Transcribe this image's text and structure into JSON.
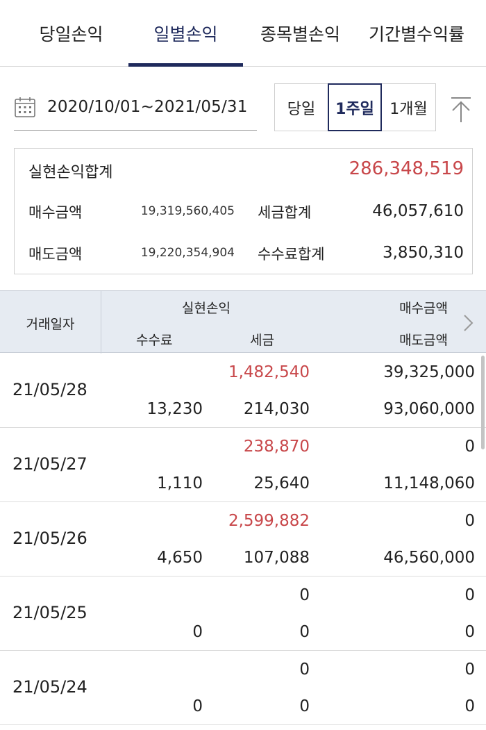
{
  "tabs": [
    {
      "label": "당일손익"
    },
    {
      "label": "일별손익"
    },
    {
      "label": "종목별손익"
    },
    {
      "label": "기간별수익률"
    }
  ],
  "active_tab": "일별손익",
  "date_range": "2020/10/01~2021/05/31",
  "period_buttons": [
    {
      "label": "당일"
    },
    {
      "label": "1주일"
    },
    {
      "label": "1개월"
    }
  ],
  "active_period": "1주일",
  "summary": {
    "realized_total_label": "실현손익합계",
    "realized_total_value": "286,348,519",
    "buy_amount_label": "매수금액",
    "buy_amount_value": "19,319,560,405",
    "tax_total_label": "세금합계",
    "tax_total_value": "46,057,610",
    "sell_amount_label": "매도금액",
    "sell_amount_value": "19,220,354,904",
    "fee_total_label": "수수료합계",
    "fee_total_value": "3,850,310"
  },
  "table": {
    "headers": {
      "date": "거래일자",
      "realized_pnl": "실현손익",
      "buy_amount": "매수금액",
      "fee": "수수료",
      "tax": "세금",
      "sell_amount": "매도금액"
    },
    "rows": [
      {
        "date": "21/05/28",
        "realized_pnl": "1,482,540",
        "buy_amount": "39,325,000",
        "fee": "13,230",
        "tax": "214,030",
        "sell_amount": "93,060,000"
      },
      {
        "date": "21/05/27",
        "realized_pnl": "238,870",
        "buy_amount": "0",
        "fee": "1,110",
        "tax": "25,640",
        "sell_amount": "11,148,060"
      },
      {
        "date": "21/05/26",
        "realized_pnl": "2,599,882",
        "buy_amount": "0",
        "fee": "4,650",
        "tax": "107,088",
        "sell_amount": "46,560,000"
      },
      {
        "date": "21/05/25",
        "realized_pnl": "0",
        "buy_amount": "0",
        "fee": "0",
        "tax": "0",
        "sell_amount": "0"
      },
      {
        "date": "21/05/24",
        "realized_pnl": "0",
        "buy_amount": "0",
        "fee": "0",
        "tax": "0",
        "sell_amount": "0"
      }
    ]
  },
  "colors": {
    "accent_navy": "#1f2a5c",
    "profit_red": "#c8474a",
    "header_bg": "#e6ebf2"
  },
  "icons": {
    "date": "calendar-icon",
    "scroll_top": "arrow-up-icon",
    "next_columns": "chevron-right-icon"
  }
}
